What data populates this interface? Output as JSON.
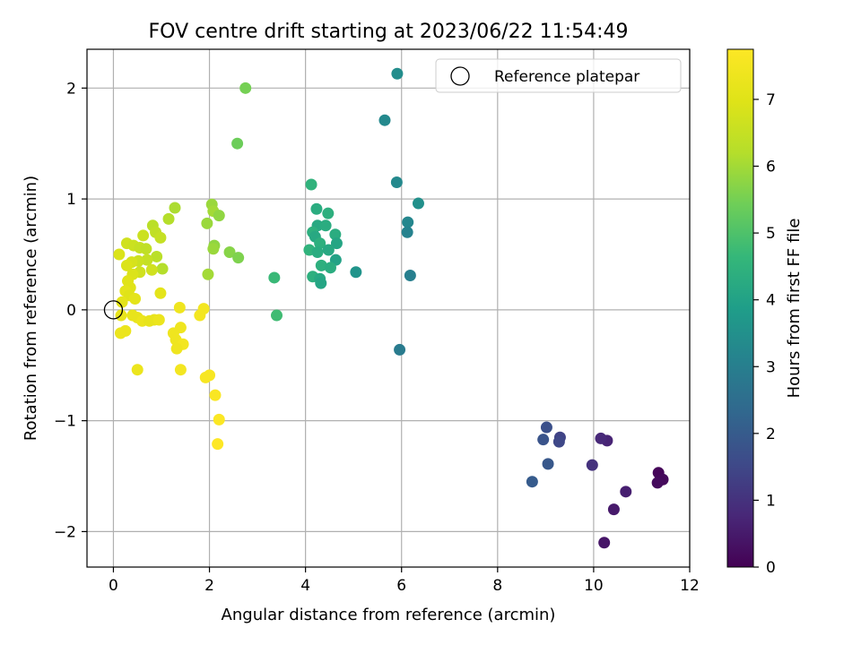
{
  "chart_data": {
    "type": "scatter",
    "title": "FOV centre drift starting at 2023/06/22 11:54:49",
    "xlabel": "Angular distance from reference (arcmin)",
    "ylabel": "Rotation from reference (arcmin)",
    "xlim": [
      -0.55,
      12
    ],
    "ylim": [
      -2.32,
      2.35
    ],
    "xticks": [
      0,
      2,
      4,
      6,
      8,
      10,
      12
    ],
    "yticks": [
      -2,
      -1,
      0,
      1,
      2
    ],
    "xtick_labels": [
      "0",
      "2",
      "4",
      "6",
      "8",
      "10",
      "12"
    ],
    "ytick_labels": [
      "−2",
      "−1",
      "0",
      "1",
      "2"
    ],
    "grid": true,
    "colormap": "viridis",
    "legend": {
      "placement": "top-right",
      "label": "Reference platepar"
    },
    "reference_point": [
      0,
      0
    ],
    "colorbar": {
      "label": "Hours from first FF file",
      "range": [
        0,
        7.75
      ],
      "ticks": [
        0,
        1,
        2,
        3,
        4,
        5,
        6,
        7
      ],
      "tick_labels": [
        "0",
        "1",
        "2",
        "3",
        "4",
        "5",
        "6",
        "7"
      ]
    },
    "points": [
      {
        "x": 11.35,
        "y": -1.47,
        "t": 0.1
      },
      {
        "x": 11.44,
        "y": -1.53,
        "t": 0.15
      },
      {
        "x": 11.33,
        "y": -1.56,
        "t": 0.2
      },
      {
        "x": 10.22,
        "y": -2.1,
        "t": 0.4
      },
      {
        "x": 10.42,
        "y": -1.8,
        "t": 0.5
      },
      {
        "x": 10.67,
        "y": -1.64,
        "t": 0.6
      },
      {
        "x": 10.28,
        "y": -1.18,
        "t": 0.7
      },
      {
        "x": 10.15,
        "y": -1.16,
        "t": 0.8
      },
      {
        "x": 9.97,
        "y": -1.4,
        "t": 1.0
      },
      {
        "x": 9.3,
        "y": -1.15,
        "t": 1.4
      },
      {
        "x": 9.28,
        "y": -1.19,
        "t": 1.5
      },
      {
        "x": 9.02,
        "y": -1.06,
        "t": 1.7
      },
      {
        "x": 8.95,
        "y": -1.17,
        "t": 1.8
      },
      {
        "x": 9.05,
        "y": -1.39,
        "t": 1.9
      },
      {
        "x": 8.72,
        "y": -1.55,
        "t": 2.0
      },
      {
        "x": 5.91,
        "y": 2.13,
        "t": 3.4
      },
      {
        "x": 5.65,
        "y": 1.71,
        "t": 3.3
      },
      {
        "x": 5.9,
        "y": 1.15,
        "t": 3.3
      },
      {
        "x": 6.35,
        "y": 0.96,
        "t": 3.5
      },
      {
        "x": 6.13,
        "y": 0.79,
        "t": 3.2
      },
      {
        "x": 6.12,
        "y": 0.7,
        "t": 3.1
      },
      {
        "x": 6.18,
        "y": 0.31,
        "t": 3.0
      },
      {
        "x": 5.96,
        "y": -0.36,
        "t": 2.9
      },
      {
        "x": 5.05,
        "y": 0.34,
        "t": 3.6
      },
      {
        "x": 4.12,
        "y": 1.13,
        "t": 4.5
      },
      {
        "x": 4.23,
        "y": 0.91,
        "t": 4.3
      },
      {
        "x": 4.47,
        "y": 0.87,
        "t": 4.4
      },
      {
        "x": 4.25,
        "y": 0.76,
        "t": 4.2
      },
      {
        "x": 4.42,
        "y": 0.76,
        "t": 4.3
      },
      {
        "x": 4.15,
        "y": 0.7,
        "t": 4.4
      },
      {
        "x": 4.2,
        "y": 0.66,
        "t": 4.2
      },
      {
        "x": 4.62,
        "y": 0.68,
        "t": 4.3
      },
      {
        "x": 4.65,
        "y": 0.6,
        "t": 4.1
      },
      {
        "x": 4.3,
        "y": 0.6,
        "t": 4.4
      },
      {
        "x": 4.08,
        "y": 0.54,
        "t": 4.5
      },
      {
        "x": 4.25,
        "y": 0.52,
        "t": 4.3
      },
      {
        "x": 4.48,
        "y": 0.54,
        "t": 4.2
      },
      {
        "x": 4.63,
        "y": 0.45,
        "t": 4.0
      },
      {
        "x": 4.33,
        "y": 0.4,
        "t": 4.4
      },
      {
        "x": 4.52,
        "y": 0.38,
        "t": 4.3
      },
      {
        "x": 4.15,
        "y": 0.3,
        "t": 4.4
      },
      {
        "x": 4.3,
        "y": 0.28,
        "t": 4.2
      },
      {
        "x": 4.32,
        "y": 0.24,
        "t": 4.1
      },
      {
        "x": 3.35,
        "y": 0.29,
        "t": 4.7
      },
      {
        "x": 3.4,
        "y": -0.05,
        "t": 4.8
      },
      {
        "x": 2.75,
        "y": 2.0,
        "t": 5.5
      },
      {
        "x": 2.58,
        "y": 1.5,
        "t": 5.4
      },
      {
        "x": 2.05,
        "y": 0.95,
        "t": 5.9
      },
      {
        "x": 2.08,
        "y": 0.89,
        "t": 6.0
      },
      {
        "x": 2.2,
        "y": 0.85,
        "t": 5.8
      },
      {
        "x": 1.95,
        "y": 0.78,
        "t": 5.9
      },
      {
        "x": 2.1,
        "y": 0.58,
        "t": 5.8
      },
      {
        "x": 2.08,
        "y": 0.55,
        "t": 5.9
      },
      {
        "x": 2.42,
        "y": 0.52,
        "t": 5.7
      },
      {
        "x": 2.6,
        "y": 0.47,
        "t": 5.6
      },
      {
        "x": 1.97,
        "y": 0.32,
        "t": 6.0
      },
      {
        "x": 1.28,
        "y": 0.92,
        "t": 6.1
      },
      {
        "x": 1.15,
        "y": 0.82,
        "t": 6.2
      },
      {
        "x": 0.82,
        "y": 0.76,
        "t": 6.3
      },
      {
        "x": 0.88,
        "y": 0.7,
        "t": 6.4
      },
      {
        "x": 0.98,
        "y": 0.65,
        "t": 6.5
      },
      {
        "x": 0.62,
        "y": 0.67,
        "t": 6.6
      },
      {
        "x": 0.28,
        "y": 0.6,
        "t": 6.7
      },
      {
        "x": 0.42,
        "y": 0.58,
        "t": 6.6
      },
      {
        "x": 0.55,
        "y": 0.56,
        "t": 6.5
      },
      {
        "x": 0.68,
        "y": 0.55,
        "t": 6.4
      },
      {
        "x": 0.12,
        "y": 0.5,
        "t": 6.9
      },
      {
        "x": 0.9,
        "y": 0.48,
        "t": 6.3
      },
      {
        "x": 0.7,
        "y": 0.45,
        "t": 6.5
      },
      {
        "x": 0.52,
        "y": 0.44,
        "t": 6.6
      },
      {
        "x": 0.38,
        "y": 0.43,
        "t": 6.8
      },
      {
        "x": 0.28,
        "y": 0.4,
        "t": 6.9
      },
      {
        "x": 1.02,
        "y": 0.37,
        "t": 6.2
      },
      {
        "x": 0.8,
        "y": 0.36,
        "t": 6.7
      },
      {
        "x": 0.55,
        "y": 0.34,
        "t": 6.7
      },
      {
        "x": 0.4,
        "y": 0.32,
        "t": 6.9
      },
      {
        "x": 0.3,
        "y": 0.26,
        "t": 7.0
      },
      {
        "x": 0.35,
        "y": 0.2,
        "t": 7.0
      },
      {
        "x": 0.25,
        "y": 0.17,
        "t": 7.1
      },
      {
        "x": 0.33,
        "y": 0.13,
        "t": 7.0
      },
      {
        "x": 0.18,
        "y": 0.07,
        "t": 7.1
      },
      {
        "x": 0.98,
        "y": 0.15,
        "t": 7.1
      },
      {
        "x": 0.45,
        "y": 0.1,
        "t": 7.1
      },
      {
        "x": 0.16,
        "y": -0.05,
        "t": 7.2
      },
      {
        "x": 0.4,
        "y": -0.05,
        "t": 7.2
      },
      {
        "x": 0.5,
        "y": -0.07,
        "t": 7.2
      },
      {
        "x": 0.6,
        "y": -0.1,
        "t": 7.3
      },
      {
        "x": 0.75,
        "y": -0.1,
        "t": 7.2
      },
      {
        "x": 0.85,
        "y": -0.09,
        "t": 7.2
      },
      {
        "x": 0.95,
        "y": -0.09,
        "t": 7.3
      },
      {
        "x": 0.25,
        "y": -0.19,
        "t": 7.3
      },
      {
        "x": 0.15,
        "y": -0.21,
        "t": 7.3
      },
      {
        "x": 0.5,
        "y": -0.54,
        "t": 7.3
      },
      {
        "x": 1.38,
        "y": 0.02,
        "t": 7.4
      },
      {
        "x": 1.4,
        "y": -0.16,
        "t": 7.4
      },
      {
        "x": 1.25,
        "y": -0.21,
        "t": 7.4
      },
      {
        "x": 1.3,
        "y": -0.27,
        "t": 7.4
      },
      {
        "x": 1.35,
        "y": -0.3,
        "t": 7.4
      },
      {
        "x": 1.45,
        "y": -0.31,
        "t": 7.5
      },
      {
        "x": 1.32,
        "y": -0.35,
        "t": 7.4
      },
      {
        "x": 1.4,
        "y": -0.54,
        "t": 7.5
      },
      {
        "x": 1.8,
        "y": -0.05,
        "t": 7.5
      },
      {
        "x": 1.88,
        "y": 0.01,
        "t": 7.5
      },
      {
        "x": 1.92,
        "y": -0.61,
        "t": 7.6
      },
      {
        "x": 2.0,
        "y": -0.59,
        "t": 7.6
      },
      {
        "x": 2.12,
        "y": -0.77,
        "t": 7.65
      },
      {
        "x": 2.2,
        "y": -0.99,
        "t": 7.7
      },
      {
        "x": 2.17,
        "y": -1.21,
        "t": 7.75
      }
    ]
  }
}
